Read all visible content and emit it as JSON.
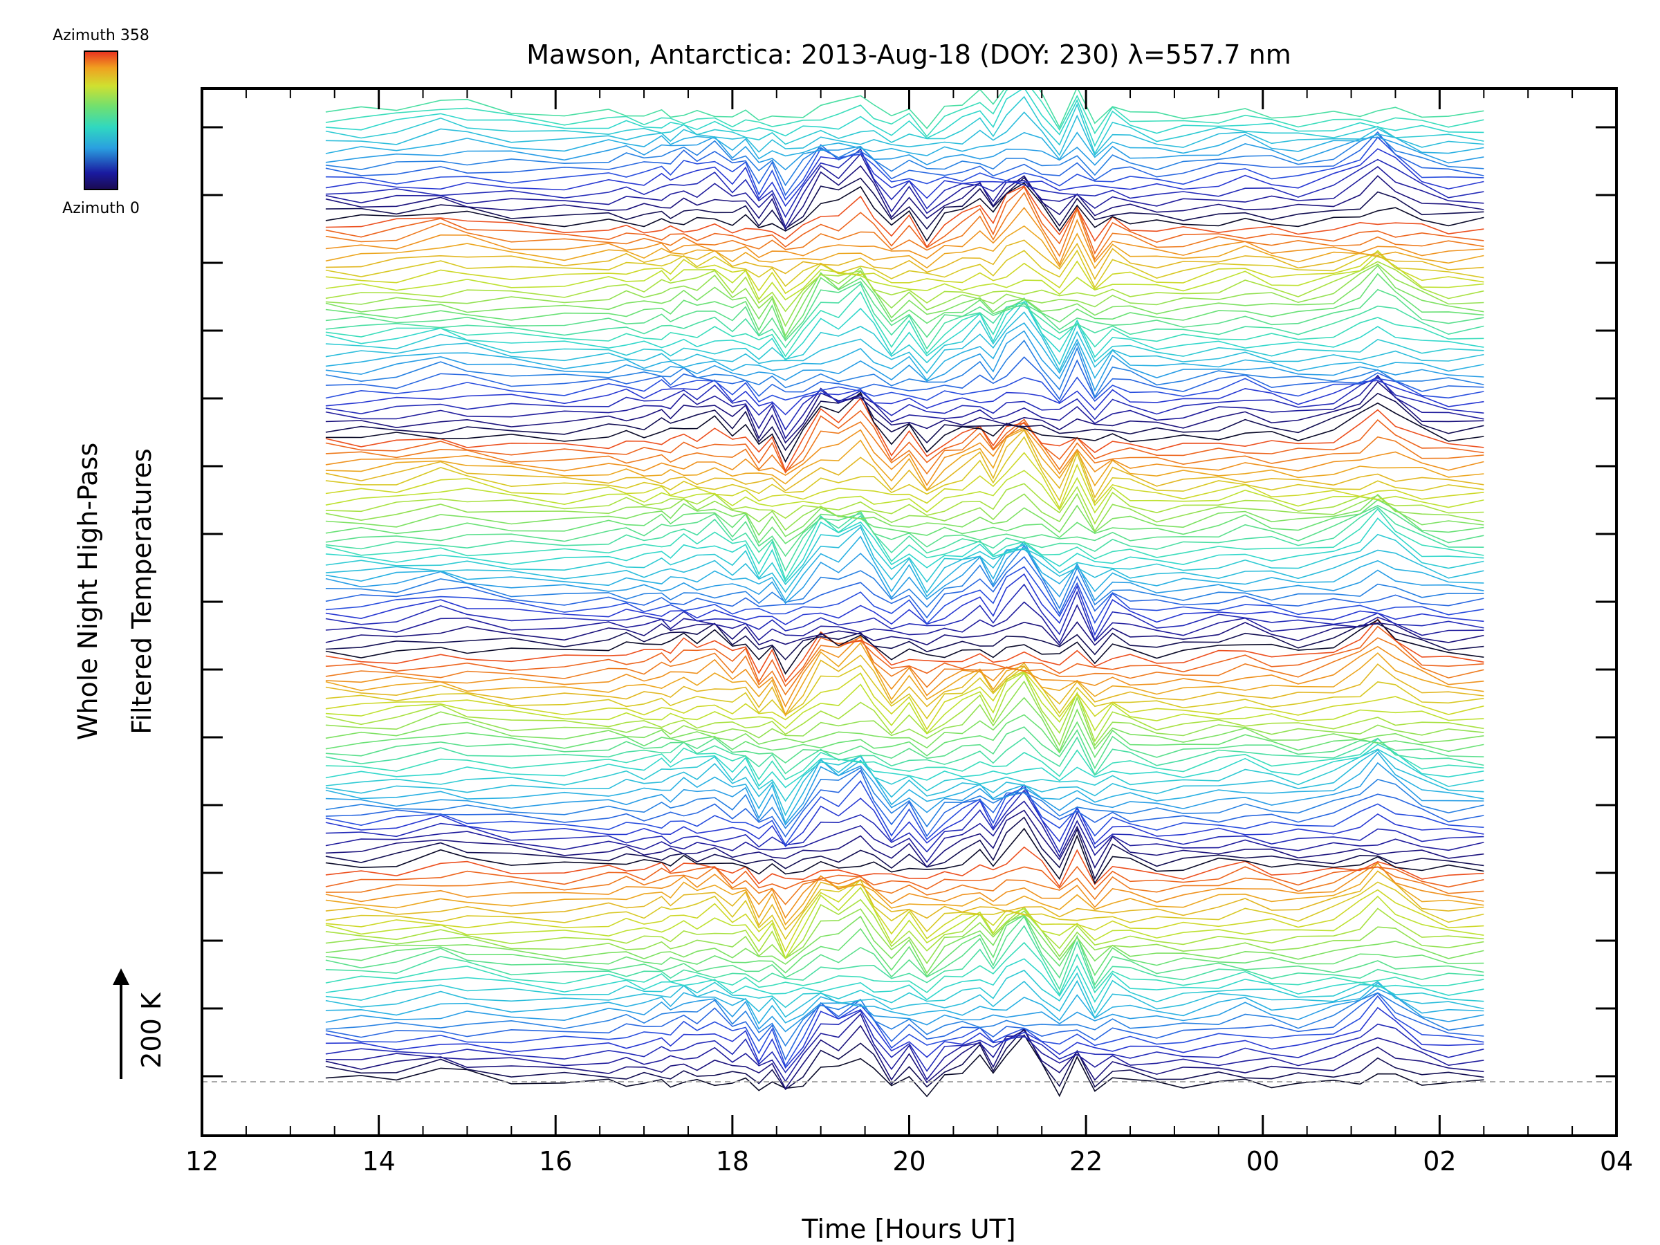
{
  "chart_data": {
    "type": "line",
    "title": "Mawson, Antarctica: 2013-Aug-18 (DOY: 230) λ=557.7 nm",
    "xlabel": "Time [Hours UT]",
    "ylabel_line1": "Whole Night High-Pass",
    "ylabel_line2": "Filtered Temperatures",
    "x_tick_labels": [
      "12",
      "14",
      "16",
      "18",
      "20",
      "22",
      "00",
      "02",
      "04"
    ],
    "x_tick_hours": [
      12,
      14,
      16,
      18,
      20,
      22,
      24,
      26,
      28
    ],
    "xlim": [
      12,
      28
    ],
    "scale_label": "200 K",
    "colorbar": {
      "top_label": "Azimuth  358",
      "bottom_label": "Azimuth  0",
      "min": 0,
      "max": 358
    },
    "base_curve": {
      "x": [
        13.4,
        13.8,
        14.2,
        14.7,
        15.0,
        15.5,
        16.1,
        16.6,
        16.8,
        17.0,
        17.2,
        17.3,
        17.45,
        17.6,
        17.8,
        18.0,
        18.15,
        18.3,
        18.45,
        18.6,
        18.8,
        19.0,
        19.2,
        19.45,
        19.6,
        19.8,
        20.0,
        20.2,
        20.4,
        20.6,
        20.8,
        20.95,
        21.1,
        21.3,
        21.5,
        21.7,
        21.9,
        22.1,
        22.3,
        22.5,
        22.8,
        23.1,
        23.5,
        23.8,
        24.1,
        24.4,
        24.8,
        25.1,
        25.3,
        25.5,
        25.8,
        26.1,
        26.5
      ],
      "y": [
        10,
        8,
        12,
        26,
        20,
        10,
        5,
        12,
        15,
        12,
        20,
        16,
        28,
        22,
        34,
        10,
        24,
        -14,
        12,
        -32,
        8,
        52,
        40,
        66,
        32,
        -8,
        20,
        -20,
        10,
        22,
        42,
        12,
        48,
        72,
        28,
        -12,
        46,
        -18,
        22,
        10,
        0,
        2,
        12,
        20,
        10,
        4,
        16,
        36,
        60,
        38,
        12,
        2,
        4
      ]
    },
    "series": [
      {
        "label": "",
        "azimuth": 0
      },
      {
        "label": "",
        "azimuth": 45
      },
      {
        "label": "",
        "azimuth": 90
      },
      {
        "label": "",
        "azimuth": 135
      },
      {
        "label": "",
        "azimuth": 180
      },
      {
        "label": "",
        "azimuth": 225
      },
      {
        "label": "",
        "azimuth": 270
      },
      {
        "label": "",
        "azimuth": 315
      },
      {
        "label": "",
        "azimuth": 358
      }
    ],
    "num_traces": 136,
    "azimuth_step_per_trace": 12,
    "reference_line": "dashed gray",
    "grid": false
  }
}
